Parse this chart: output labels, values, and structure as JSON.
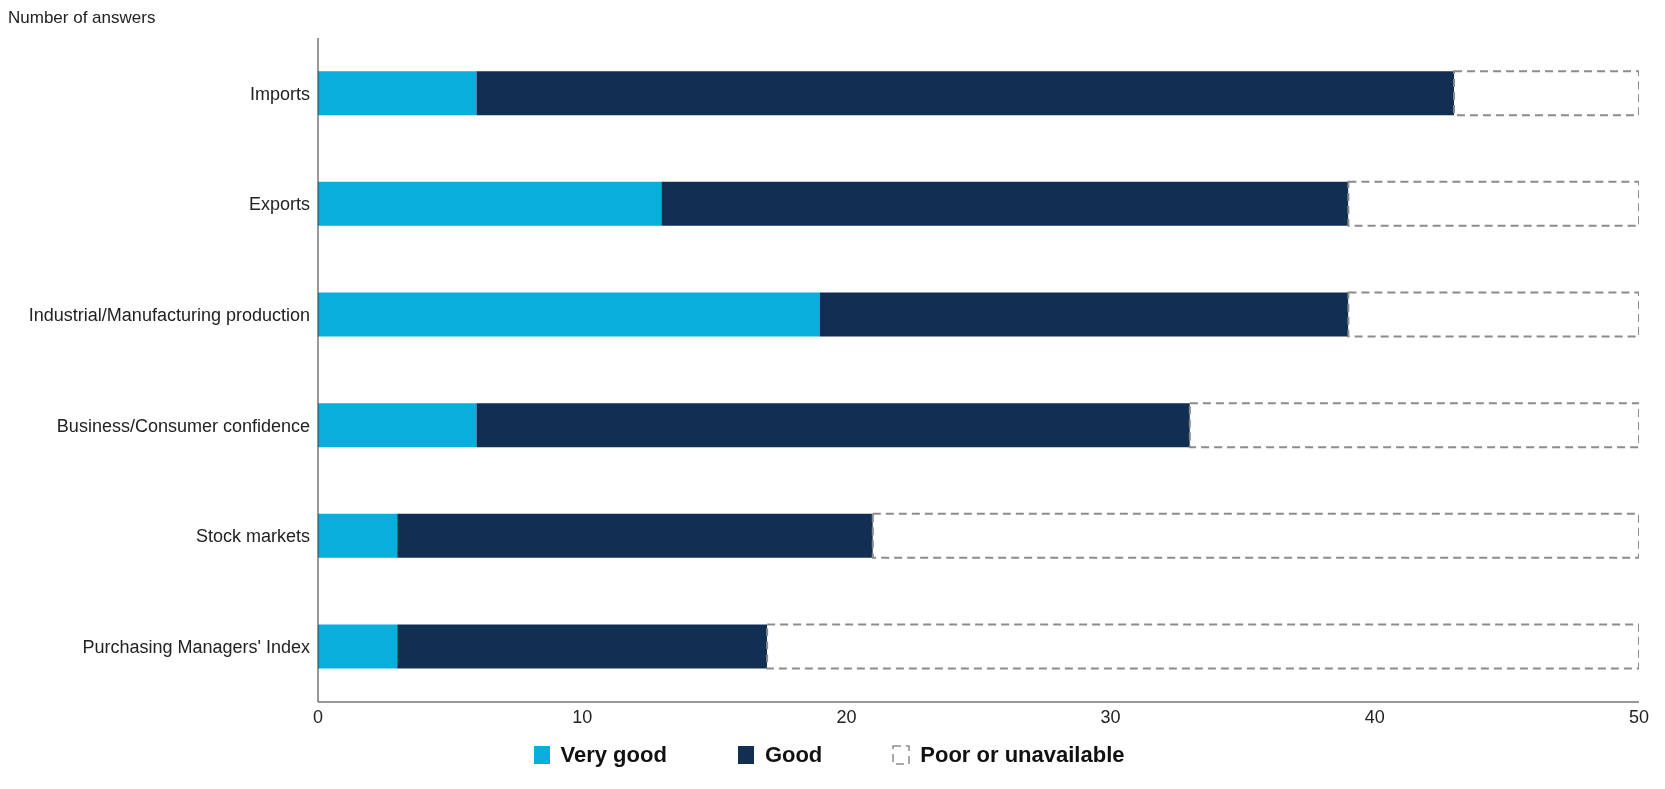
{
  "chart_data": {
    "type": "bar",
    "orientation": "horizontal",
    "stacked": true,
    "title": "Number of answers",
    "categories": [
      "Imports",
      "Exports",
      "Industrial/Manufacturing production",
      "Business/Consumer confidence",
      "Stock markets",
      "Purchasing Managers' Index"
    ],
    "series": [
      {
        "name": "Very good",
        "color": "#0aaedc",
        "values": [
          6,
          13,
          19,
          6,
          3,
          3
        ]
      },
      {
        "name": "Good",
        "color": "#112f52",
        "values": [
          37,
          26,
          20,
          27,
          18,
          14
        ]
      },
      {
        "name": "Poor or unavailable",
        "color": "#8c8c8c",
        "line_style": "dashed",
        "values": [
          7,
          11,
          11,
          17,
          29,
          33
        ]
      }
    ],
    "xlim": [
      0,
      50
    ],
    "xticks": [
      0,
      10,
      20,
      30,
      40,
      50
    ],
    "grid": false,
    "legend": "bottom"
  }
}
